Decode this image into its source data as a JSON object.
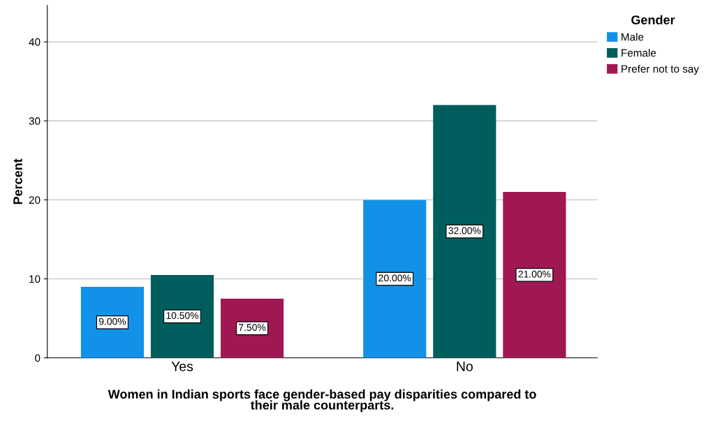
{
  "chart_data": {
    "type": "bar",
    "xlabel": "Women in Indian sports face gender-based pay disparities compared to\ntheir male counterparts.",
    "ylabel": "Percent",
    "legend_title": "Gender",
    "categories": [
      "Yes",
      "No"
    ],
    "series": [
      {
        "name": "Male",
        "color": "#1192e8",
        "values": [
          9.0,
          20.0
        ],
        "value_labels": [
          "9.00%",
          "20.00%"
        ]
      },
      {
        "name": "Female",
        "color": "#005d5d",
        "values": [
          10.5,
          32.0
        ],
        "value_labels": [
          "10.50%",
          "32.00%"
        ]
      },
      {
        "name": "Prefer not to say",
        "color": "#9f1853",
        "values": [
          7.5,
          21.0
        ],
        "value_labels": [
          "7.50%",
          "21.00%"
        ]
      }
    ],
    "ylim": [
      0,
      44.6
    ],
    "yticks": [
      0,
      10,
      20,
      30,
      40
    ],
    "grid": "y",
    "legend": "top right"
  }
}
